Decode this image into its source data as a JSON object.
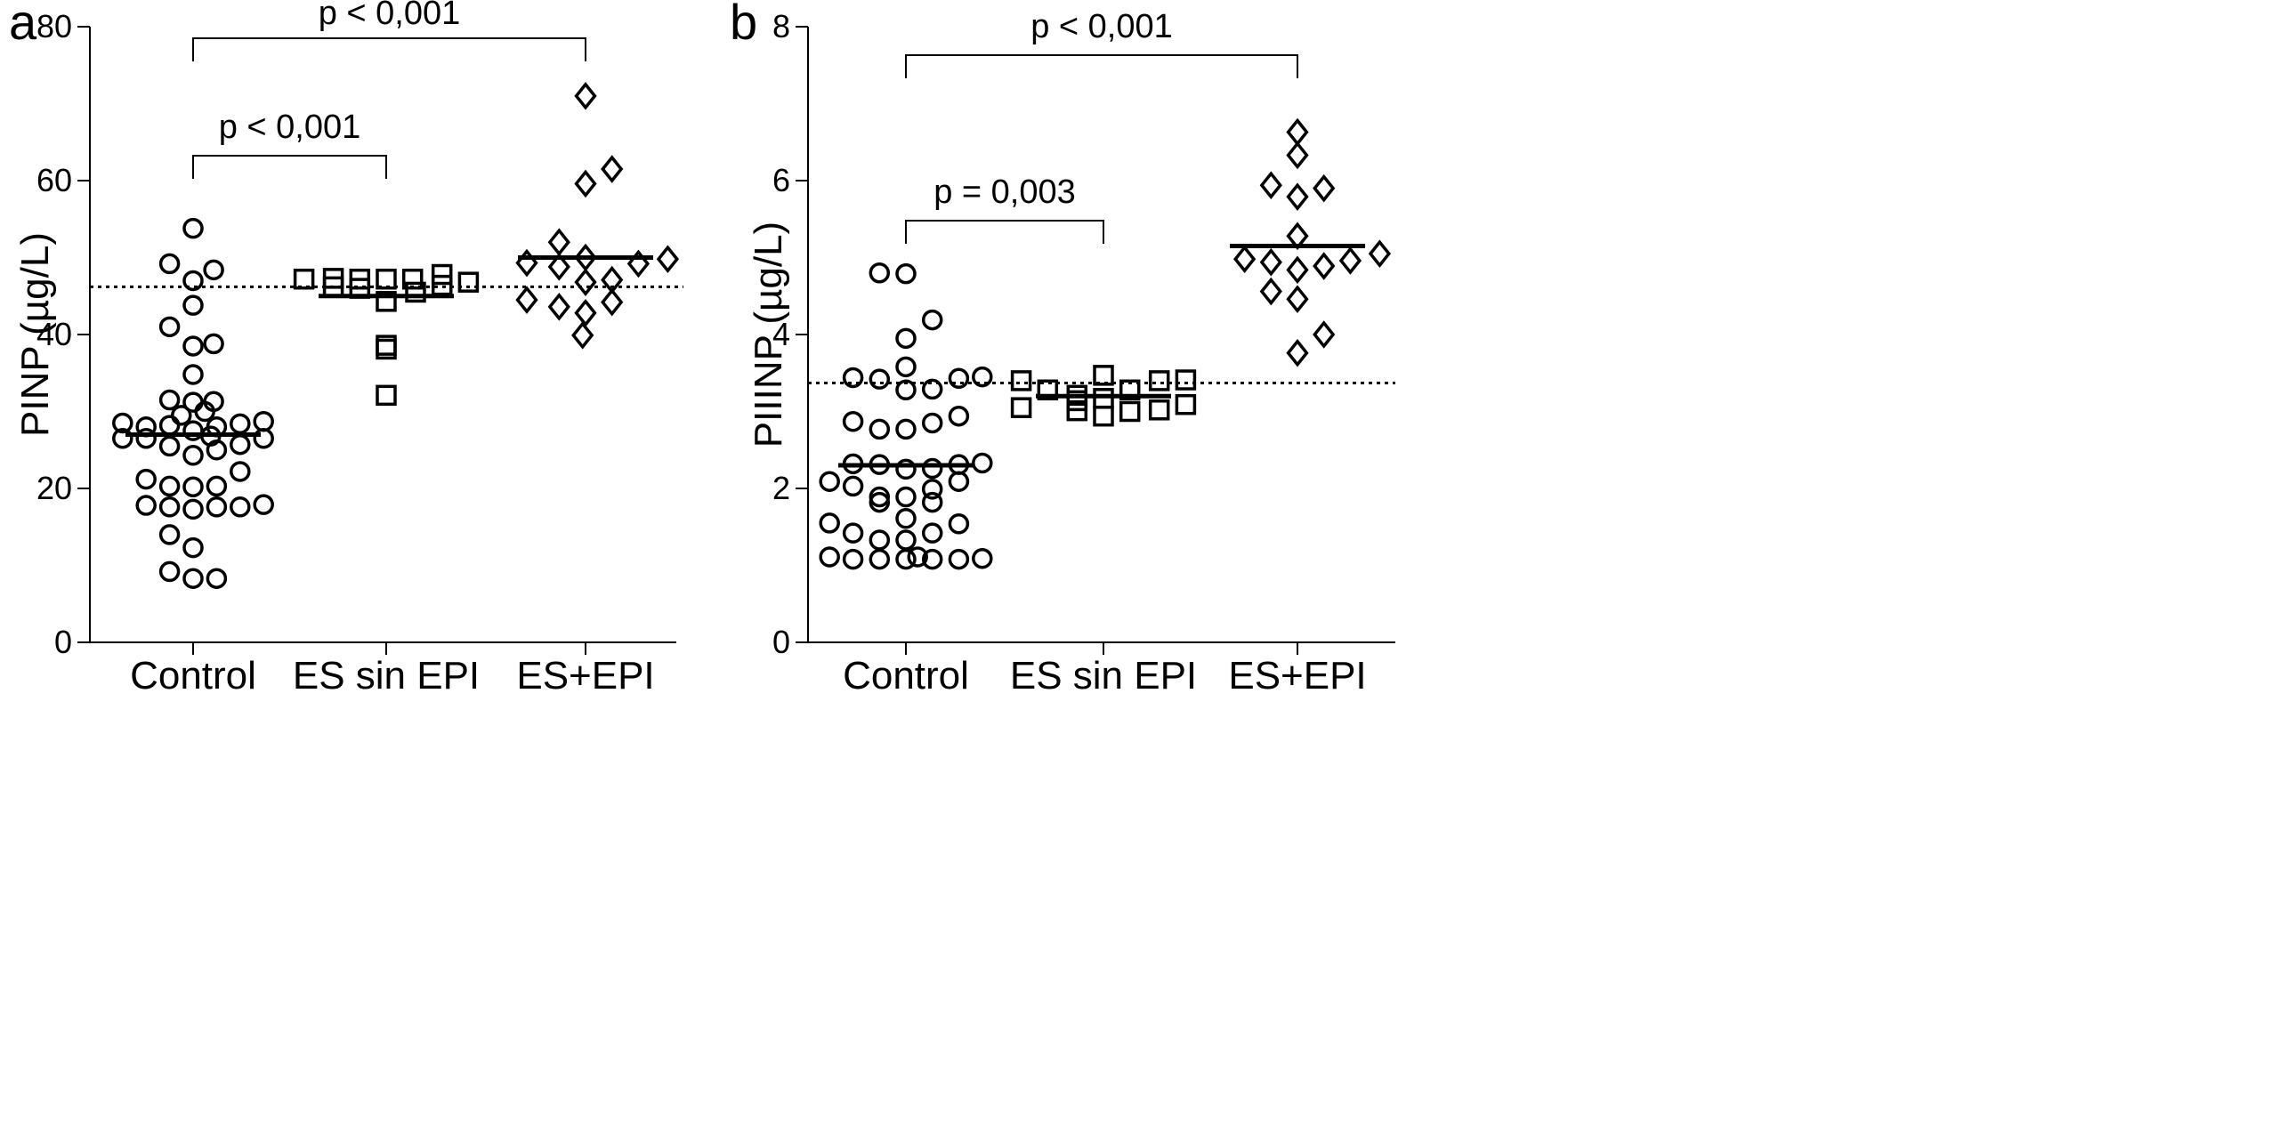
{
  "chart_data": [
    {
      "type": "scatter",
      "panel_label": "a",
      "ylabel": "PINP (µg/L)",
      "ylim": [
        0,
        80
      ],
      "yticks": [
        "0",
        "20",
        "40",
        "60",
        "80"
      ],
      "categories": [
        "Control",
        "ES sin EPI",
        "ES+EPI"
      ],
      "reference_line": 46.2,
      "medians": [
        27.0,
        45.0,
        50.0
      ],
      "comparisons": [
        {
          "label": "p < 0,001",
          "from": 0,
          "to": 1
        },
        {
          "label": "p < 0,001",
          "from": 0,
          "to": 2
        }
      ],
      "series": [
        {
          "marker": "circle",
          "points": [
            [
              0.0,
              53.8
            ],
            [
              -0.08,
              49.2
            ],
            [
              0.07,
              48.4
            ],
            [
              0.0,
              47.0
            ],
            [
              0.0,
              43.8
            ],
            [
              -0.08,
              41.0
            ],
            [
              0.0,
              38.5
            ],
            [
              0.07,
              38.8
            ],
            [
              0.0,
              34.8
            ],
            [
              -0.08,
              31.5
            ],
            [
              0.0,
              31.2
            ],
            [
              0.07,
              31.3
            ],
            [
              -0.04,
              29.5
            ],
            [
              0.04,
              30.0
            ],
            [
              -0.24,
              28.5
            ],
            [
              -0.16,
              28.0
            ],
            [
              -0.08,
              28.2
            ],
            [
              0.0,
              27.5
            ],
            [
              0.08,
              28.0
            ],
            [
              0.16,
              28.4
            ],
            [
              0.24,
              28.7
            ],
            [
              -0.24,
              26.5
            ],
            [
              -0.16,
              26.5
            ],
            [
              0.06,
              26.8
            ],
            [
              0.24,
              26.5
            ],
            [
              -0.08,
              25.5
            ],
            [
              0.08,
              25.0
            ],
            [
              0.16,
              25.7
            ],
            [
              0.0,
              24.3
            ],
            [
              0.16,
              22.2
            ],
            [
              -0.16,
              21.2
            ],
            [
              -0.08,
              20.3
            ],
            [
              0.0,
              20.2
            ],
            [
              0.08,
              20.3
            ],
            [
              -0.16,
              17.8
            ],
            [
              -0.08,
              17.6
            ],
            [
              0.0,
              17.3
            ],
            [
              0.08,
              17.6
            ],
            [
              0.16,
              17.6
            ],
            [
              0.24,
              17.9
            ],
            [
              -0.08,
              14.0
            ],
            [
              0.0,
              12.3
            ],
            [
              -0.08,
              9.2
            ],
            [
              0.0,
              8.3
            ],
            [
              0.08,
              8.3
            ]
          ]
        },
        {
          "marker": "square",
          "points": [
            [
              -0.28,
              47.2
            ],
            [
              -0.18,
              47.3
            ],
            [
              -0.09,
              47.2
            ],
            [
              0.0,
              47.2
            ],
            [
              0.09,
              47.2
            ],
            [
              0.19,
              47.8
            ],
            [
              0.28,
              46.8
            ],
            [
              -0.18,
              46.2
            ],
            [
              -0.09,
              46.0
            ],
            [
              0.19,
              46.4
            ],
            [
              0.1,
              45.5
            ],
            [
              0.0,
              44.3
            ],
            [
              0.0,
              38.6
            ],
            [
              0.0,
              38.1
            ],
            [
              0.0,
              32.1
            ]
          ]
        },
        {
          "marker": "diamond",
          "points": [
            [
              0.0,
              71.0
            ],
            [
              0.09,
              61.5
            ],
            [
              0.0,
              59.6
            ],
            [
              -0.09,
              52.0
            ],
            [
              -0.2,
              49.3
            ],
            [
              -0.09,
              48.8
            ],
            [
              0.0,
              50.0
            ],
            [
              0.18,
              49.2
            ],
            [
              0.28,
              49.8
            ],
            [
              0.0,
              46.8
            ],
            [
              0.09,
              47.1
            ],
            [
              -0.2,
              44.5
            ],
            [
              -0.09,
              43.6
            ],
            [
              0.09,
              44.2
            ],
            [
              0.0,
              42.8
            ],
            [
              -0.01,
              39.9
            ]
          ]
        }
      ]
    },
    {
      "type": "scatter",
      "panel_label": "b",
      "ylabel": "PIIINP (µg/L)",
      "ylim": [
        0,
        8
      ],
      "yticks": [
        "0",
        "2",
        "4",
        "6",
        "8"
      ],
      "categories": [
        "Control",
        "ES sin EPI",
        "ES+EPI"
      ],
      "reference_line": 3.37,
      "medians": [
        2.3,
        3.2,
        5.15
      ],
      "comparisons": [
        {
          "label": "p = 0,003",
          "from": 0,
          "to": 1
        },
        {
          "label": "p < 0,001",
          "from": 0,
          "to": 2
        }
      ],
      "series": [
        {
          "marker": "circle",
          "points": [
            [
              -0.09,
              4.8
            ],
            [
              0.0,
              4.79
            ],
            [
              0.09,
              4.19
            ],
            [
              0.0,
              3.95
            ],
            [
              0.0,
              3.58
            ],
            [
              -0.18,
              3.44
            ],
            [
              -0.09,
              3.42
            ],
            [
              0.0,
              3.28
            ],
            [
              0.09,
              3.29
            ],
            [
              0.18,
              3.43
            ],
            [
              0.26,
              3.45
            ],
            [
              -0.18,
              2.87
            ],
            [
              -0.09,
              2.77
            ],
            [
              0.0,
              2.77
            ],
            [
              0.09,
              2.85
            ],
            [
              0.18,
              2.94
            ],
            [
              -0.18,
              2.32
            ],
            [
              -0.09,
              2.31
            ],
            [
              0.0,
              2.25
            ],
            [
              0.09,
              2.26
            ],
            [
              0.18,
              2.31
            ],
            [
              0.26,
              2.33
            ],
            [
              -0.26,
              2.09
            ],
            [
              -0.18,
              2.03
            ],
            [
              0.09,
              1.99
            ],
            [
              0.18,
              2.09
            ],
            [
              -0.09,
              1.89
            ],
            [
              0.0,
              1.89
            ],
            [
              -0.09,
              1.82
            ],
            [
              0.09,
              1.82
            ],
            [
              0.0,
              1.61
            ],
            [
              -0.26,
              1.55
            ],
            [
              0.18,
              1.54
            ],
            [
              -0.18,
              1.42
            ],
            [
              0.09,
              1.42
            ],
            [
              -0.09,
              1.33
            ],
            [
              0.0,
              1.33
            ],
            [
              -0.26,
              1.11
            ],
            [
              -0.18,
              1.08
            ],
            [
              -0.09,
              1.08
            ],
            [
              0.0,
              1.08
            ],
            [
              0.04,
              1.11
            ],
            [
              0.09,
              1.08
            ],
            [
              0.18,
              1.08
            ],
            [
              0.26,
              1.09
            ]
          ]
        },
        {
          "marker": "square",
          "points": [
            [
              -0.28,
              3.4
            ],
            [
              -0.19,
              3.28
            ],
            [
              -0.09,
              3.21
            ],
            [
              0.0,
              3.47
            ],
            [
              0.09,
              3.28
            ],
            [
              0.19,
              3.4
            ],
            [
              0.28,
              3.41
            ],
            [
              -0.09,
              3.14
            ],
            [
              0.0,
              3.17
            ],
            [
              0.28,
              3.09
            ],
            [
              -0.28,
              3.05
            ],
            [
              -0.09,
              3.01
            ],
            [
              0.0,
              2.94
            ],
            [
              0.09,
              3.0
            ],
            [
              0.19,
              3.02
            ]
          ]
        },
        {
          "marker": "diamond",
          "points": [
            [
              0.0,
              6.63
            ],
            [
              0.0,
              6.33
            ],
            [
              -0.09,
              5.94
            ],
            [
              0.09,
              5.9
            ],
            [
              0.0,
              5.79
            ],
            [
              0.0,
              5.28
            ],
            [
              -0.18,
              4.98
            ],
            [
              -0.09,
              4.94
            ],
            [
              0.0,
              4.84
            ],
            [
              0.09,
              4.89
            ],
            [
              0.18,
              4.96
            ],
            [
              0.28,
              5.05
            ],
            [
              -0.09,
              4.56
            ],
            [
              0.0,
              4.46
            ],
            [
              0.09,
              4.0
            ],
            [
              0.0,
              3.76
            ]
          ]
        }
      ]
    }
  ]
}
